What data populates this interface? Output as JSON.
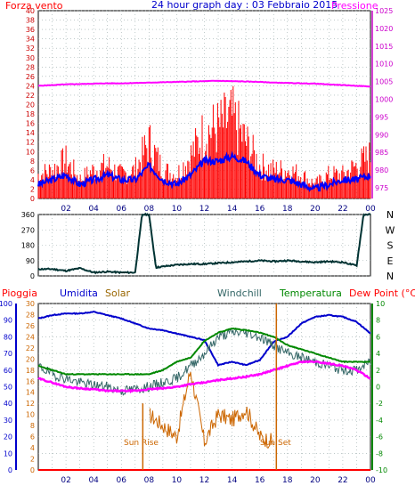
{
  "title": "24 hour graph day : 03 Febbraio 2015",
  "colors": {
    "wind_speed": "#ff0000",
    "wind_gust_avg": "#0000ff",
    "pressure": "#ff00ff",
    "direction": "#003333",
    "humidity": "#0000cc",
    "solar": "#cc6600",
    "windchill": "#336666",
    "temperature": "#008800",
    "dewpoint": "#ff00ff",
    "rain": "#ff0000"
  },
  "labels": {
    "wind": "Forza vento",
    "pressure": "Pressione",
    "rain": "Pioggia",
    "humidity": "Umidita",
    "solar": "Solar",
    "windchill": "Windchill",
    "temperature": "Temperatura",
    "dewpoint": "Dew Point (°C)",
    "sunrise": "Sun Rise",
    "sunset": "Sun Set"
  },
  "x_ticks": [
    "02",
    "04",
    "06",
    "08",
    "10",
    "12",
    "14",
    "16",
    "18",
    "20",
    "22",
    "00"
  ],
  "chart_data": [
    {
      "type": "line",
      "panel": "wind_pressure",
      "x_hours": [
        0,
        1,
        2,
        3,
        4,
        5,
        6,
        7,
        8,
        9,
        10,
        11,
        12,
        13,
        14,
        15,
        16,
        17,
        18,
        19,
        20,
        21,
        22,
        23,
        24
      ],
      "series": [
        {
          "name": "Forza vento",
          "axis": "left",
          "values": [
            5,
            6,
            8,
            4,
            6,
            7,
            5,
            6,
            12,
            6,
            5,
            9,
            14,
            15,
            17,
            12,
            7,
            6,
            6,
            5,
            3,
            5,
            5,
            7,
            9
          ]
        },
        {
          "name": "wind avg",
          "axis": "left",
          "values": [
            3,
            4,
            5,
            3,
            4,
            5,
            4,
            4,
            7,
            4,
            3,
            5,
            8,
            8,
            9,
            8,
            5,
            4,
            4,
            3,
            2,
            3,
            4,
            4,
            5
          ]
        },
        {
          "name": "Pressione",
          "axis": "right",
          "values": [
            1003.8,
            1004,
            1004.2,
            1004.3,
            1004.4,
            1004.5,
            1004.5,
            1004.6,
            1004.7,
            1004.8,
            1004.9,
            1005,
            1005.1,
            1005.2,
            1005.1,
            1005,
            1004.9,
            1004.7,
            1004.6,
            1004.5,
            1004.4,
            1004.2,
            1004,
            1003.8,
            1003.6
          ]
        }
      ],
      "ylim_left": [
        0,
        40
      ],
      "yticks_left": [
        0,
        2,
        4,
        6,
        8,
        10,
        12,
        14,
        16,
        18,
        20,
        22,
        24,
        26,
        28,
        30,
        32,
        34,
        36,
        38,
        40
      ],
      "ylim_right": [
        972,
        1025
      ],
      "yticks_right": [
        975,
        980,
        985,
        990,
        995,
        1000,
        1005,
        1010,
        1015,
        1020,
        1025
      ]
    },
    {
      "type": "line",
      "panel": "wind_direction",
      "x_hours": [
        0,
        1,
        2,
        3,
        4,
        5,
        6,
        7,
        7.5,
        8,
        8.5,
        9,
        10,
        11,
        12,
        13,
        14,
        15,
        16,
        17,
        18,
        19,
        20,
        21,
        22,
        23,
        23.5,
        24
      ],
      "series": [
        {
          "name": "direction",
          "values": [
            40,
            40,
            30,
            45,
            20,
            25,
            20,
            20,
            360,
            360,
            50,
            55,
            65,
            70,
            70,
            75,
            80,
            85,
            90,
            85,
            90,
            85,
            80,
            85,
            80,
            60,
            360,
            360
          ]
        }
      ],
      "ylim": [
        0,
        360
      ],
      "yticks": [
        0,
        90,
        180,
        270,
        360
      ],
      "direction_labels": [
        "N",
        "W",
        "S",
        "E",
        "N"
      ]
    },
    {
      "type": "line",
      "panel": "weather",
      "x_hours": [
        0,
        1,
        2,
        3,
        4,
        5,
        6,
        7,
        8,
        9,
        10,
        11,
        12,
        13,
        14,
        15,
        16,
        17,
        18,
        19,
        20,
        21,
        22,
        23,
        24
      ],
      "series": [
        {
          "name": "Umidita",
          "axis": "humidity",
          "values": [
            91,
            93,
            94,
            94,
            95,
            93,
            91,
            88,
            85,
            84,
            82,
            80,
            78,
            63,
            65,
            63,
            66,
            77,
            80,
            88,
            92,
            93,
            92,
            89,
            82
          ]
        },
        {
          "name": "Solar",
          "axis": "solar",
          "values": [
            null,
            null,
            null,
            null,
            null,
            null,
            null,
            null,
            10,
            8,
            6,
            18,
            5,
            10,
            9,
            11,
            6,
            5,
            null,
            null,
            null,
            null,
            null,
            null,
            null
          ]
        },
        {
          "name": "Windchill",
          "axis": "temp",
          "values": [
            2.5,
            1.5,
            1,
            0.5,
            0.2,
            0,
            -0.5,
            -0.3,
            0,
            0.5,
            1,
            2.5,
            4,
            6,
            6.5,
            6.5,
            6,
            5,
            4,
            3.5,
            3,
            2.5,
            2,
            2,
            3
          ]
        },
        {
          "name": "Temperatura",
          "axis": "temp",
          "values": [
            2.5,
            2,
            1.5,
            1.5,
            1.5,
            1.5,
            1.5,
            1.5,
            1.5,
            2,
            3,
            3.5,
            5.5,
            6.5,
            7,
            6.8,
            6.5,
            6,
            5,
            4.5,
            4,
            3.5,
            3,
            3,
            3
          ]
        },
        {
          "name": "Dew Point (°C)",
          "axis": "temp",
          "values": [
            1,
            0.5,
            0,
            -0.2,
            -0.3,
            -0.5,
            -0.5,
            -0.5,
            -0.3,
            -0.2,
            0,
            0.3,
            0.5,
            0.8,
            1,
            1.2,
            1.5,
            2,
            2.5,
            3,
            3,
            2.8,
            2.5,
            2,
            1
          ]
        },
        {
          "name": "Pioggia",
          "axis": "rain",
          "values": [
            0,
            0,
            0,
            0,
            0,
            0,
            0,
            0,
            0,
            0,
            0,
            0,
            0,
            0,
            0,
            0,
            0,
            0,
            0,
            0,
            0,
            0,
            0,
            0,
            0
          ]
        }
      ],
      "sunrise_hour": 7.55,
      "sunset_hour": 17.2,
      "axis_rain": {
        "ylim": [
          0,
          100
        ],
        "ticks": [
          0,
          10,
          20,
          30,
          40,
          50,
          60,
          70,
          80,
          90,
          100
        ]
      },
      "axis_humidity": {
        "ylim": [
          0,
          30
        ],
        "ticks": [
          0,
          2,
          4,
          6,
          8,
          10,
          12,
          14,
          16,
          18,
          20,
          22,
          24,
          26,
          28,
          30
        ]
      },
      "axis_temp": {
        "ylim": [
          -10,
          10
        ],
        "ticks": [
          -10,
          -8,
          -6,
          -4,
          -2,
          0,
          2,
          4,
          6,
          8,
          10
        ]
      }
    }
  ]
}
